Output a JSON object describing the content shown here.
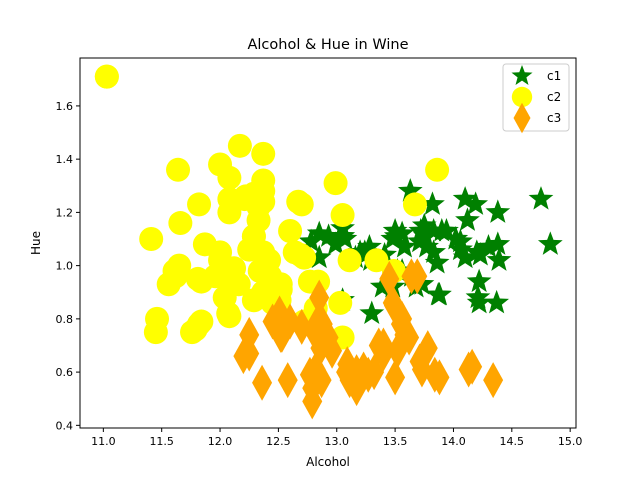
{
  "chart_data": {
    "type": "scatter",
    "title": "Alcohol & Hue in Wine",
    "xlabel": "Alcohol",
    "ylabel": "Hue",
    "xlim": [
      10.8,
      15.05
    ],
    "ylim": [
      0.39,
      1.78
    ],
    "xticks": [
      11.0,
      11.5,
      12.0,
      12.5,
      13.0,
      13.5,
      14.0,
      14.5,
      15.0
    ],
    "xtick_labels": [
      "11.0",
      "11.5",
      "12.0",
      "12.5",
      "13.0",
      "13.5",
      "14.0",
      "14.5",
      "15.0"
    ],
    "yticks": [
      0.4,
      0.6,
      0.8,
      1.0,
      1.2,
      1.4,
      1.6
    ],
    "ytick_labels": [
      "0.4",
      "0.6",
      "0.8",
      "1.0",
      "1.2",
      "1.4",
      "1.6"
    ],
    "grid": false,
    "legend_position": "top-right",
    "series": [
      {
        "name": "c1",
        "marker": "star",
        "color": "#008000",
        "points": [
          [
            14.23,
            1.04
          ],
          [
            13.2,
            1.05
          ],
          [
            13.16,
            1.03
          ],
          [
            14.37,
            0.86
          ],
          [
            13.24,
            1.04
          ],
          [
            14.2,
            1.05
          ],
          [
            14.39,
            1.02
          ],
          [
            14.06,
            1.06
          ],
          [
            14.83,
            1.08
          ],
          [
            13.86,
            1.01
          ],
          [
            14.1,
            1.25
          ],
          [
            14.12,
            1.17
          ],
          [
            13.75,
            1.15
          ],
          [
            14.75,
            1.25
          ],
          [
            14.38,
            1.2
          ],
          [
            13.63,
            1.28
          ],
          [
            14.3,
            1.07
          ],
          [
            13.83,
            1.13
          ],
          [
            14.19,
            1.23
          ],
          [
            13.64,
            0.96
          ],
          [
            14.06,
            1.09
          ],
          [
            12.93,
            1.11
          ],
          [
            13.71,
            1.09
          ],
          [
            12.85,
            1.12
          ],
          [
            13.5,
            1.13
          ],
          [
            13.05,
            1.11
          ],
          [
            13.39,
            0.92
          ],
          [
            13.3,
            0.82
          ],
          [
            13.87,
            0.89
          ],
          [
            14.02,
            1.1
          ],
          [
            13.73,
            0.93
          ],
          [
            13.58,
            1.07
          ],
          [
            13.68,
            0.92
          ],
          [
            13.76,
            1.11
          ],
          [
            13.51,
            1.11
          ],
          [
            13.48,
            0.92
          ],
          [
            13.28,
            1.07
          ],
          [
            13.05,
            0.87
          ],
          [
            13.07,
            1.1
          ],
          [
            14.22,
            0.86
          ],
          [
            13.56,
            1.12
          ],
          [
            13.41,
            1.04
          ],
          [
            13.88,
            0.89
          ],
          [
            13.24,
            1.05
          ],
          [
            13.05,
            1.14
          ],
          [
            14.21,
            0.88
          ],
          [
            14.38,
            1.08
          ],
          [
            13.9,
            1.13
          ],
          [
            14.1,
            1.03
          ],
          [
            13.94,
            1.13
          ],
          [
            13.05,
            1.11
          ],
          [
            13.83,
            1.05
          ],
          [
            13.82,
            1.23
          ],
          [
            13.77,
            1.07
          ],
          [
            13.74,
            1.12
          ],
          [
            13.56,
            0.98
          ],
          [
            14.22,
            0.94
          ],
          [
            13.29,
            1.02
          ],
          [
            13.72,
            1.13
          ],
          [
            12.85,
            1.03
          ],
          [
            13.48,
            1.1
          ],
          [
            12.99,
            1.08
          ],
          [
            12.78,
            1.09
          ],
          [
            13.52,
            0.98
          ]
        ]
      },
      {
        "name": "c2",
        "marker": "circle",
        "color": "#ffff00",
        "points": [
          [
            11.03,
            1.71
          ],
          [
            12.37,
            1.42
          ],
          [
            12.33,
            1.27
          ],
          [
            12.64,
            1.05
          ],
          [
            12.29,
            1.07
          ],
          [
            12.37,
            1.24
          ],
          [
            12.17,
            1.45
          ],
          [
            12.37,
            1.32
          ],
          [
            13.11,
            1.02
          ],
          [
            12.37,
            1.05
          ],
          [
            13.34,
            1.02
          ],
          [
            12.21,
            1.25
          ],
          [
            12.29,
            1.11
          ],
          [
            13.86,
            1.36
          ],
          [
            13.49,
            0.98
          ],
          [
            12.99,
            1.31
          ],
          [
            11.96,
            0.96
          ],
          [
            11.66,
            1.16
          ],
          [
            13.03,
            0.86
          ],
          [
            11.84,
            0.79
          ],
          [
            12.33,
            1.17
          ],
          [
            12.7,
            1.23
          ],
          [
            12.0,
            1.38
          ],
          [
            12.72,
            1.03
          ],
          [
            12.08,
            1.2
          ],
          [
            13.05,
            1.19
          ],
          [
            11.84,
            0.94
          ],
          [
            12.67,
            1.24
          ],
          [
            12.16,
            0.93
          ],
          [
            11.65,
            1.0
          ],
          [
            11.64,
            1.36
          ],
          [
            12.08,
            0.94
          ],
          [
            12.08,
            0.93
          ],
          [
            12.0,
            1.02
          ],
          [
            12.69,
            1.04
          ],
          [
            12.29,
            1.27
          ],
          [
            11.62,
            0.96
          ],
          [
            12.47,
            0.93
          ],
          [
            11.81,
            0.95
          ],
          [
            12.29,
            0.87
          ],
          [
            12.37,
            1.28
          ],
          [
            12.29,
            1.11
          ],
          [
            12.08,
            1.33
          ],
          [
            12.6,
            1.13
          ],
          [
            12.34,
            0.98
          ],
          [
            11.82,
            1.23
          ],
          [
            12.51,
            0.87
          ],
          [
            12.42,
            0.94
          ],
          [
            12.25,
            1.06
          ],
          [
            12.72,
            0.79
          ],
          [
            12.22,
            1.26
          ],
          [
            11.61,
            0.98
          ],
          [
            11.46,
            0.8
          ],
          [
            12.52,
            0.91
          ],
          [
            11.76,
            0.75
          ],
          [
            11.41,
            1.1
          ],
          [
            12.08,
            1.25
          ],
          [
            11.03,
            1.71
          ],
          [
            11.82,
            0.78
          ],
          [
            12.42,
            1.02
          ],
          [
            12.77,
            0.94
          ],
          [
            12.0,
            1.05
          ],
          [
            11.45,
            0.75
          ],
          [
            11.56,
            0.93
          ],
          [
            12.42,
            0.88
          ],
          [
            13.05,
            0.73
          ],
          [
            11.87,
            1.08
          ],
          [
            12.07,
            0.82
          ],
          [
            12.43,
            0.96
          ],
          [
            11.79,
            0.76
          ],
          [
            12.37,
            0.9
          ],
          [
            12.04,
            0.88
          ],
          [
            12.33,
            1.22
          ],
          [
            12.82,
            0.84
          ],
          [
            12.45,
            0.86
          ],
          [
            12.84,
            0.94
          ],
          [
            13.67,
            1.23
          ],
          [
            12.12,
            0.99
          ],
          [
            12.52,
            0.93
          ],
          [
            12.08,
            0.81
          ]
        ]
      },
      {
        "name": "c3",
        "marker": "diamond",
        "color": "#ffa500",
        "points": [
          [
            12.86,
            0.69
          ],
          [
            12.88,
            0.78
          ],
          [
            12.81,
            0.75
          ],
          [
            12.7,
            0.77
          ],
          [
            12.51,
            0.82
          ],
          [
            12.6,
            0.79
          ],
          [
            12.25,
            0.74
          ],
          [
            12.53,
            0.74
          ],
          [
            13.49,
            0.85
          ],
          [
            12.84,
            0.79
          ],
          [
            12.93,
            0.73
          ],
          [
            13.36,
            0.7
          ],
          [
            13.52,
            0.68
          ],
          [
            13.62,
            0.73
          ],
          [
            12.25,
            0.67
          ],
          [
            13.16,
            0.59
          ],
          [
            13.88,
            0.58
          ],
          [
            12.87,
            0.57
          ],
          [
            13.32,
            0.6
          ],
          [
            13.08,
            0.6
          ],
          [
            13.5,
            0.58
          ],
          [
            12.79,
            0.54
          ],
          [
            13.11,
            0.57
          ],
          [
            13.23,
            0.61
          ],
          [
            12.58,
            0.57
          ],
          [
            13.17,
            0.54
          ],
          [
            13.84,
            0.59
          ],
          [
            12.45,
            0.79
          ],
          [
            14.34,
            0.57
          ],
          [
            13.48,
            0.86
          ],
          [
            12.36,
            0.56
          ],
          [
            13.69,
            0.96
          ],
          [
            12.85,
            0.88
          ],
          [
            12.96,
            0.68
          ],
          [
            13.78,
            0.69
          ],
          [
            13.73,
            0.61
          ],
          [
            13.45,
            0.95
          ],
          [
            12.82,
            0.61
          ],
          [
            13.58,
            0.74
          ],
          [
            13.4,
            0.67
          ],
          [
            12.2,
            0.66
          ],
          [
            12.77,
            0.59
          ],
          [
            14.16,
            0.62
          ],
          [
            13.71,
            0.64
          ],
          [
            13.4,
            0.7
          ],
          [
            13.27,
            0.59
          ],
          [
            13.17,
            0.6
          ],
          [
            14.13,
            0.61
          ],
          [
            12.79,
            0.49
          ],
          [
            13.64,
            0.96
          ],
          [
            13.55,
            0.78
          ],
          [
            12.52,
            0.74
          ],
          [
            13.09,
            0.63
          ],
          [
            13.56,
            0.8
          ]
        ]
      }
    ]
  }
}
